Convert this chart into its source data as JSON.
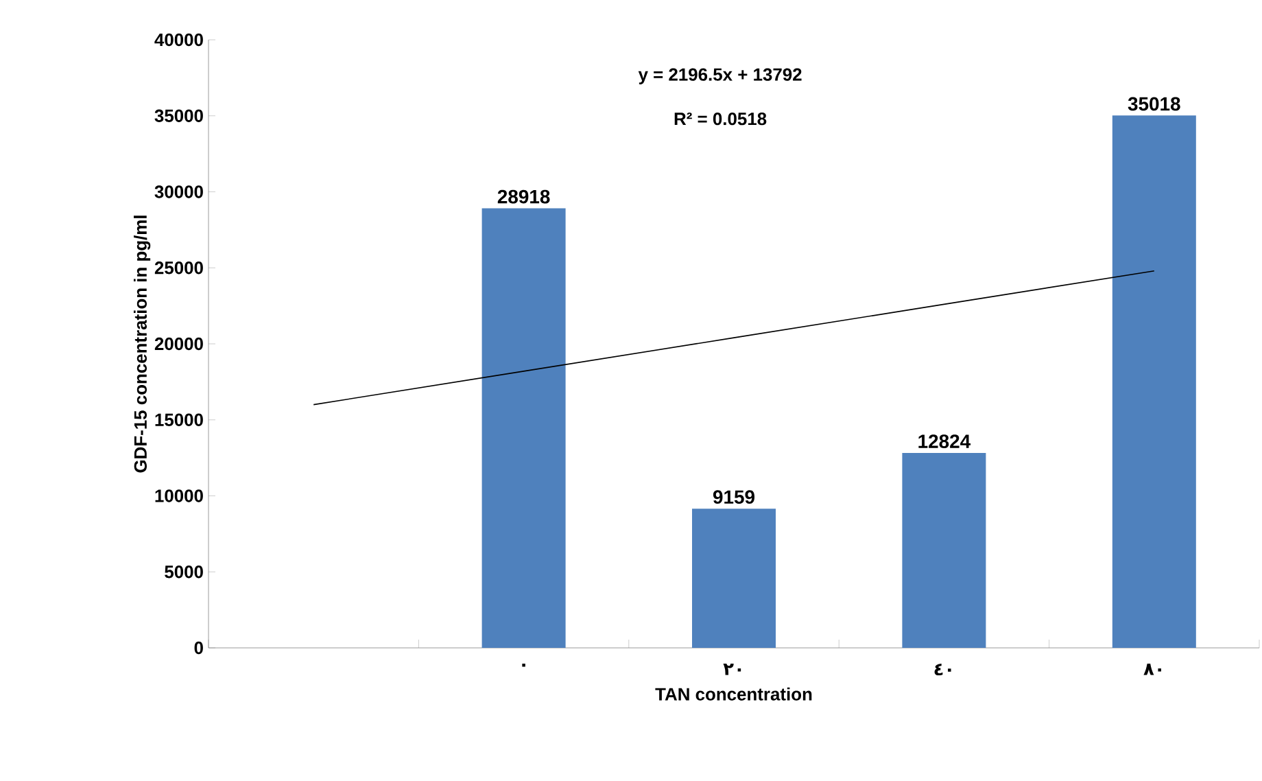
{
  "chart_data": {
    "type": "bar",
    "xlabel": "TAN concentration",
    "ylabel": "GDF-15 concentration in pg/ml",
    "categories": [
      null,
      "٠",
      "٢٠",
      "٤٠",
      "٨٠"
    ],
    "series": [
      {
        "color": "#4f81bd",
        "values": [
          null,
          28918,
          9159,
          12824,
          35018
        ],
        "value_labels": [
          null,
          "28918",
          "9159",
          "12824",
          "35018"
        ]
      },
      {
        "type": "line",
        "color": "#000000",
        "values": [
          16000,
          18200,
          20400,
          22600,
          24800
        ]
      }
    ],
    "ylim": [
      0,
      40000
    ],
    "yticks": [
      0,
      5000,
      10000,
      15000,
      20000,
      25000,
      30000,
      35000,
      40000
    ],
    "annotations": [
      "y = 2196.5x + 13792",
      "R² = 0.0518"
    ]
  }
}
